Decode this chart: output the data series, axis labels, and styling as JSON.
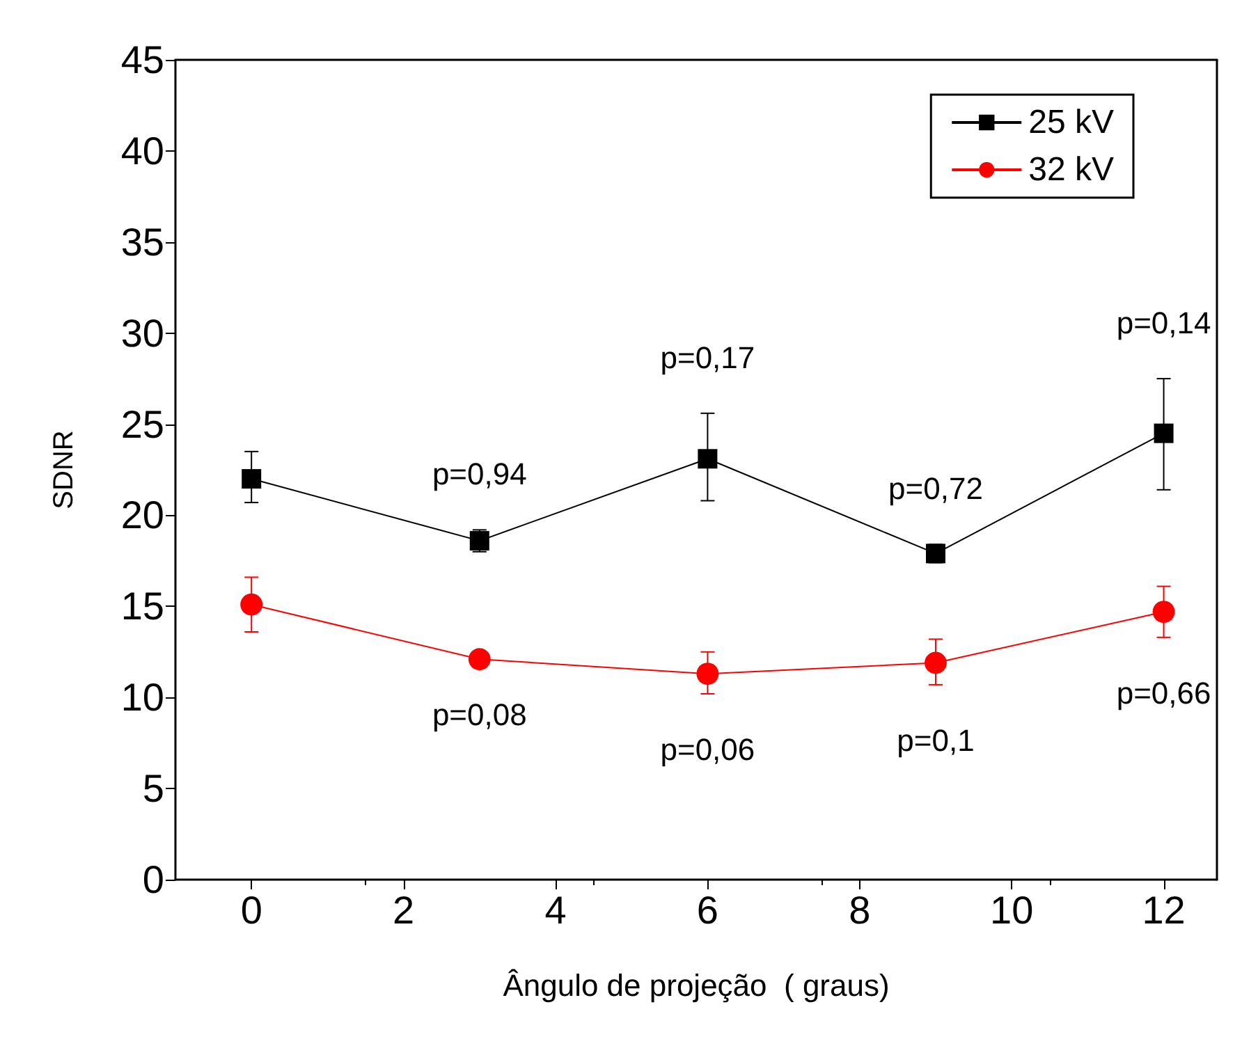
{
  "chart_data": {
    "type": "line",
    "xlabel": "Ângulo de projeção  ( graus)",
    "ylabel": "SDNR",
    "x": [
      0,
      3,
      6,
      9,
      12
    ],
    "series": [
      {
        "name": "25 kV",
        "color": "#000000",
        "marker": "square",
        "values": [
          22,
          18.6,
          23.1,
          17.9,
          24.5
        ],
        "errors": [
          [
            20.7,
            23.5
          ],
          [
            18,
            19.2
          ],
          [
            20.8,
            25.6
          ],
          [
            17.4,
            18.4
          ],
          [
            21.4,
            27.5
          ]
        ]
      },
      {
        "name": "32 kV",
        "color": "#ff0000",
        "marker": "circle",
        "values": [
          15.1,
          12.1,
          11.3,
          11.9,
          14.7
        ],
        "errors": [
          [
            13.6,
            16.6
          ],
          null,
          [
            10.2,
            12.5
          ],
          [
            10.7,
            13.2
          ],
          [
            13.3,
            16.1
          ]
        ]
      }
    ],
    "xlim": [
      -1,
      12.7
    ],
    "xticks": [
      0,
      2,
      4,
      6,
      8,
      10,
      12
    ],
    "ylim": [
      0,
      45
    ],
    "yticks": [
      0,
      5,
      10,
      15,
      20,
      25,
      30,
      35,
      40,
      45
    ],
    "legend": "top right",
    "annotations": [
      "p=0,94",
      "p=0,17",
      "p=0,72",
      "p=0,14",
      "p=0,08",
      "p=0,06",
      "p=0,1",
      "p=0,66"
    ]
  }
}
